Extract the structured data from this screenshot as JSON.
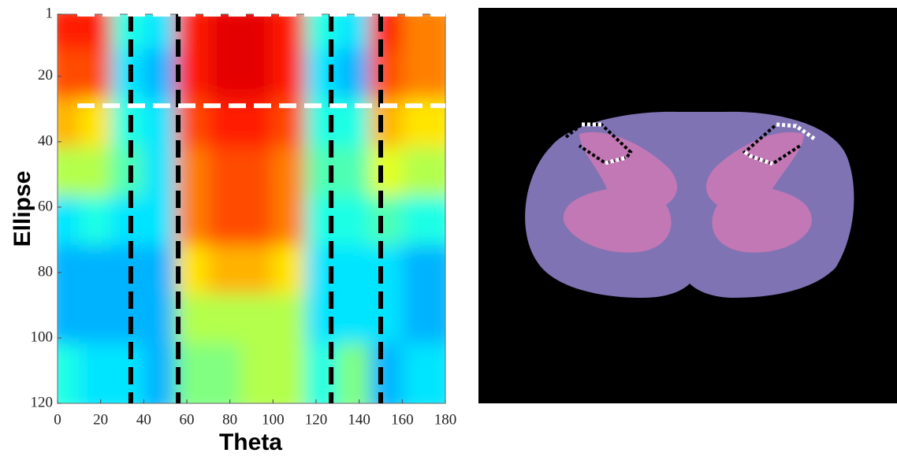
{
  "chart_data": {
    "type": "heatmap",
    "x_label": "Theta",
    "y_label": "Ellipse",
    "xlim": [
      0,
      180
    ],
    "ylim": [
      1,
      120
    ],
    "xticks": [
      0,
      20,
      40,
      60,
      80,
      100,
      120,
      140,
      160,
      180
    ],
    "yticks": [
      1,
      20,
      40,
      60,
      80,
      100,
      120
    ],
    "colormap": "jet",
    "xbins": [
      0,
      15,
      30,
      45,
      60,
      75,
      90,
      105,
      120,
      135,
      150,
      165,
      180
    ],
    "ybins": [
      1,
      15,
      30,
      45,
      60,
      75,
      90,
      105,
      120
    ],
    "z": [
      [
        0.85,
        0.85,
        0.4,
        0.35,
        0.85,
        0.9,
        0.9,
        0.85,
        0.4,
        0.35,
        0.85,
        0.75
      ],
      [
        0.8,
        0.8,
        0.35,
        0.3,
        0.85,
        0.9,
        0.9,
        0.85,
        0.35,
        0.3,
        0.8,
        0.75
      ],
      [
        0.7,
        0.65,
        0.4,
        0.35,
        0.8,
        0.85,
        0.85,
        0.8,
        0.4,
        0.4,
        0.7,
        0.65
      ],
      [
        0.55,
        0.55,
        0.45,
        0.35,
        0.75,
        0.8,
        0.8,
        0.75,
        0.45,
        0.45,
        0.6,
        0.55
      ],
      [
        0.35,
        0.4,
        0.35,
        0.35,
        0.75,
        0.8,
        0.8,
        0.75,
        0.4,
        0.4,
        0.45,
        0.4
      ],
      [
        0.3,
        0.3,
        0.3,
        0.3,
        0.65,
        0.7,
        0.7,
        0.65,
        0.35,
        0.35,
        0.35,
        0.3
      ],
      [
        0.3,
        0.3,
        0.3,
        0.3,
        0.55,
        0.55,
        0.55,
        0.55,
        0.35,
        0.35,
        0.35,
        0.3
      ],
      [
        0.4,
        0.35,
        0.35,
        0.3,
        0.5,
        0.5,
        0.55,
        0.55,
        0.4,
        0.5,
        0.3,
        0.35
      ]
    ],
    "vlines": [
      34,
      56,
      127,
      150
    ],
    "vline_color": "#000000",
    "hlines": [
      1,
      29
    ],
    "hline_color": "#ffffff"
  }
}
